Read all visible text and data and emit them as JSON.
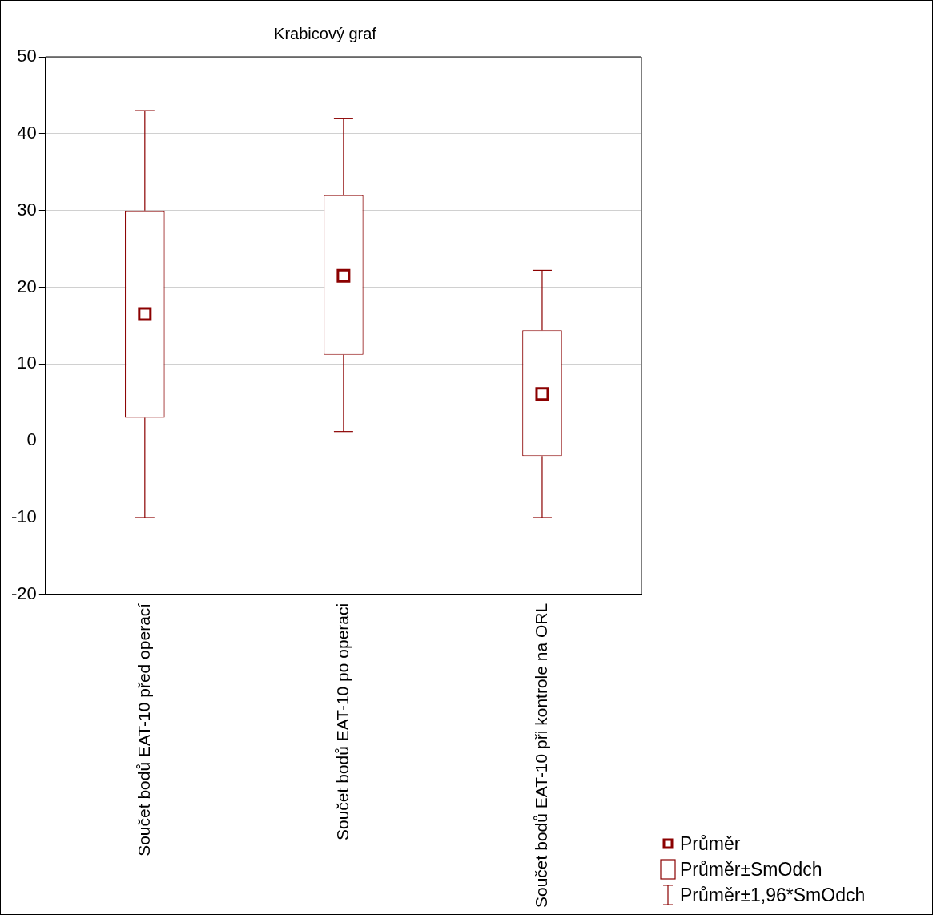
{
  "chart_data": {
    "type": "box",
    "title": "Krabicový graf",
    "categories": [
      "Součet bodů EAT-10 před operací",
      "Součet bodů EAT-10 po operaci",
      "Součet bodů EAT-10 při kontrole na ORL"
    ],
    "color": "#8b0000",
    "boxes": [
      {
        "low": -10,
        "q1": 3,
        "median": 16.5,
        "q3": 30,
        "high": 43
      },
      {
        "low": 1.2,
        "q1": 11.2,
        "median": 21.5,
        "q3": 32,
        "high": 42
      },
      {
        "low": -10,
        "q1": -2,
        "median": 6.1,
        "q3": 14.4,
        "high": 22.2
      }
    ],
    "ylim": [
      -20,
      50
    ],
    "yticks": [
      -20,
      -10,
      0,
      10,
      20,
      30,
      40,
      50
    ],
    "grid": "y",
    "marker": "square",
    "annotations": [
      "Průměr",
      "Průměr±SmOdch",
      "Průměr±1,96*SmOdch"
    ]
  }
}
